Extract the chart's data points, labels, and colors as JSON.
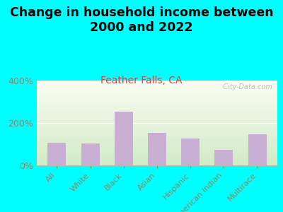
{
  "title": "Change in household income between\n2000 and 2022",
  "subtitle": "Feather Falls, CA",
  "categories": [
    "All",
    "White",
    "Black",
    "Asian",
    "Hispanic",
    "American Indian",
    "Multirace"
  ],
  "values": [
    107,
    103,
    253,
    155,
    127,
    75,
    148
  ],
  "bar_color": "#c9afd4",
  "title_fontsize": 12.5,
  "subtitle_fontsize": 10,
  "subtitle_color": "#cc4444",
  "tick_color": "#888866",
  "background_outer": "#00ffff",
  "ylim": [
    0,
    400
  ],
  "yticks": [
    0,
    200,
    400
  ],
  "ytick_labels": [
    "0%",
    "200%",
    "400%"
  ],
  "watermark": "  City-Data.com"
}
